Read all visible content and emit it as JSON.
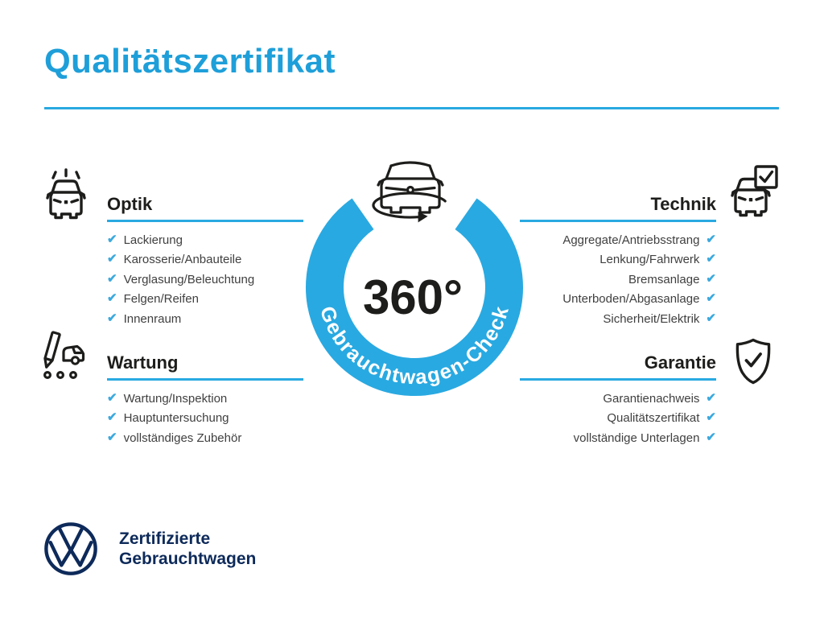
{
  "page": {
    "title": "Qualitätszertifikat"
  },
  "colors": {
    "accent_blue": "#1E9FD9",
    "ring_blue": "#29A9E1",
    "check_blue": "#3BA9DE",
    "heading_dark": "#1D1D1B",
    "item_gray": "#404040",
    "vw_navy": "#0D2A5A"
  },
  "checkmark": "✔",
  "center": {
    "value": "360°",
    "ring_label": "Gebrauchtwagen-Check"
  },
  "sections": {
    "optik": {
      "title": "Optik",
      "icon": "shiny-car-icon",
      "items": [
        "Lackierung",
        "Karosserie/Anbauteile",
        "Verglasung/Beleuchtung",
        "Felgen/Reifen",
        "Innenraum"
      ]
    },
    "wartung": {
      "title": "Wartung",
      "icon": "service-checklist-icon",
      "items": [
        "Wartung/Inspektion",
        "Hauptuntersuchung",
        "vollständiges Zubehör"
      ]
    },
    "technik": {
      "title": "Technik",
      "icon": "car-checkbox-icon",
      "items": [
        "Aggregate/Antriebsstrang",
        "Lenkung/Fahrwerk",
        "Bremsanlage",
        "Unterboden/Abgasanlage",
        "Sicherheit/Elektrik"
      ]
    },
    "garantie": {
      "title": "Garantie",
      "icon": "shield-check-icon",
      "items": [
        "Garantienachweis",
        "Qualitätszertifikat",
        "vollständige Unterlagen"
      ]
    }
  },
  "footer": {
    "brand_line1": "Zertifizierte",
    "brand_line2": "Gebrauchtwagen",
    "logo": "vw-logo"
  }
}
